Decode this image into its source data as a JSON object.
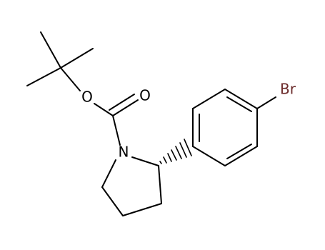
{
  "nodes": [
    {
      "label": "O"
    },
    {
      "label": "O"
    },
    {
      "label": "N"
    },
    {
      "label": "Br"
    }
  ]
}
